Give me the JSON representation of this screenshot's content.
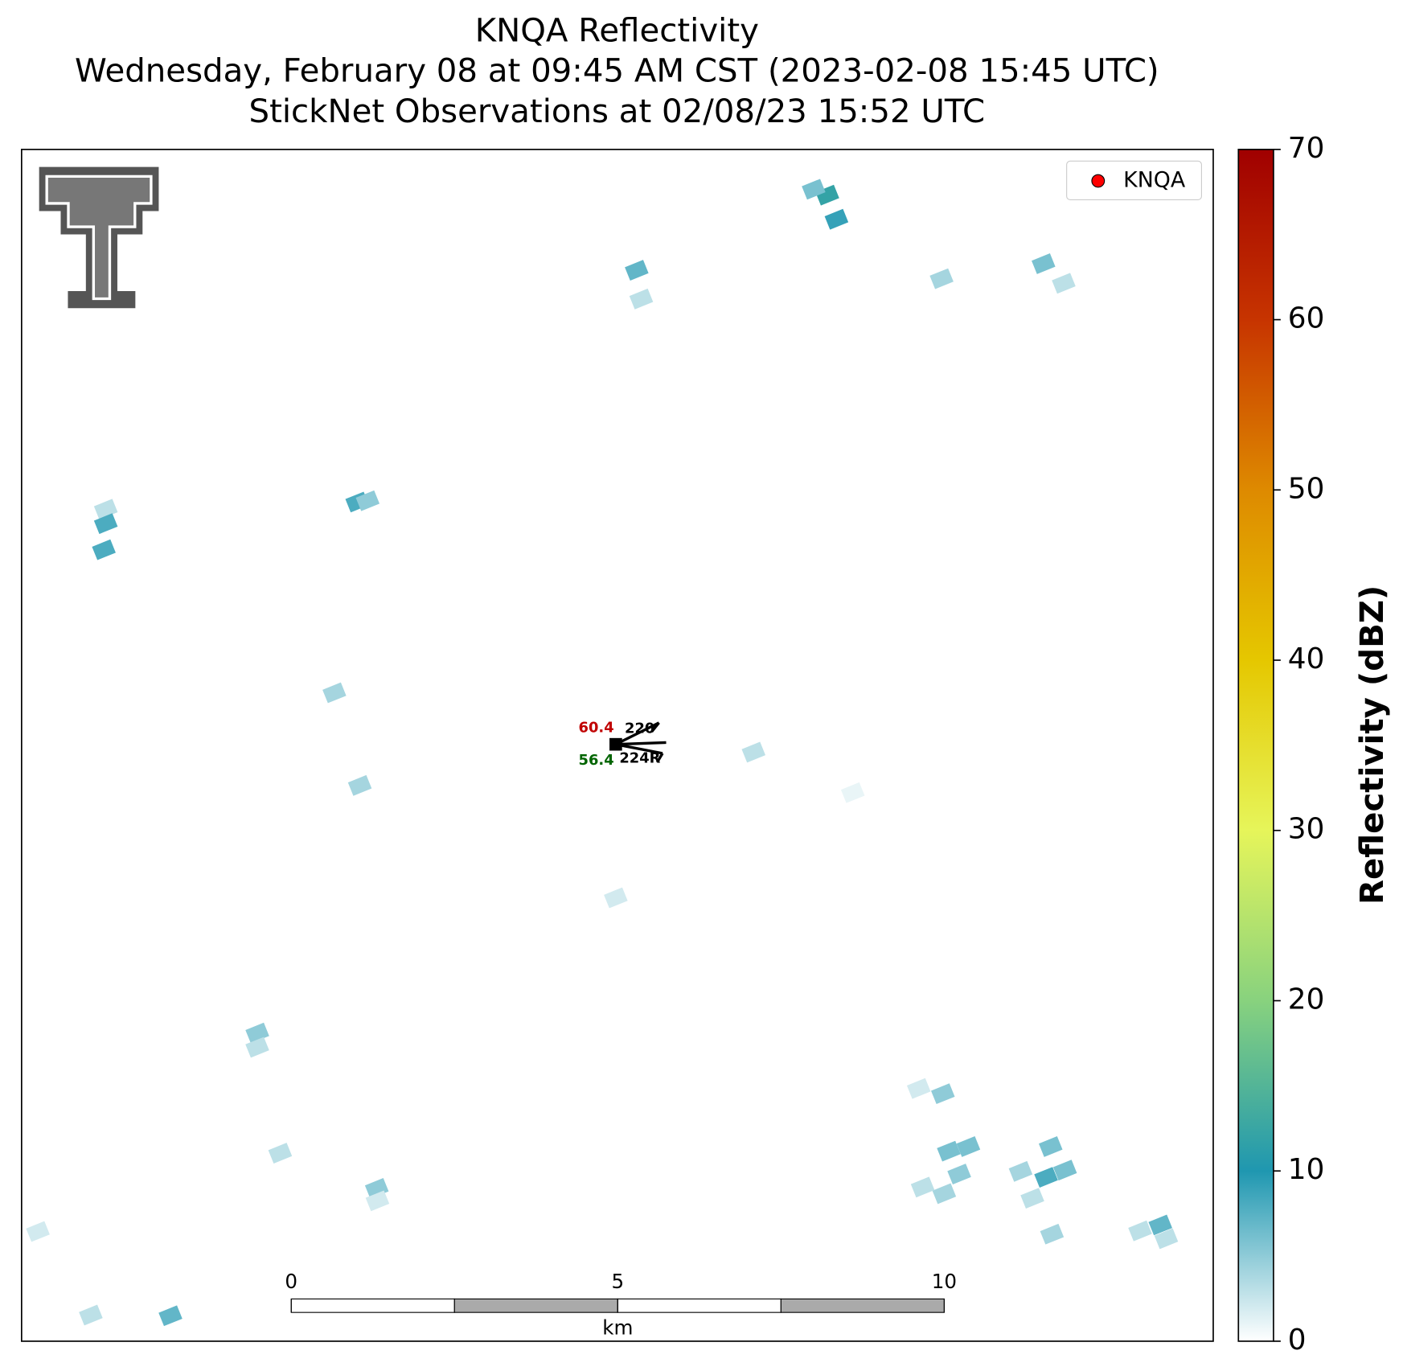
{
  "chart_data": {
    "type": "radar",
    "title": [
      "KNQA Reflectivity",
      "Wednesday, February 08 at 09:45 AM CST (2023-02-08 15:45 UTC)",
      "StickNet Observations at 02/08/23 15:52 UTC"
    ],
    "xlim": [
      -4.13,
      14.12
    ],
    "ylim": [
      0,
      18.25
    ],
    "scale_bar": {
      "ticks": [
        0,
        5,
        10
      ],
      "label": "km"
    },
    "colorbar": {
      "label": "Reflectivity (dBZ)",
      "lim": [
        0,
        70
      ],
      "ticks": [
        0,
        10,
        20,
        30,
        40,
        50,
        60,
        70
      ],
      "colors": [
        "#ffffff",
        "#1f97b0",
        "#88d27e",
        "#e6f55a",
        "#e5c700",
        "#de8a00",
        "#c73400",
        "#a00000"
      ]
    },
    "legend": {
      "name": "KNQA",
      "color": "#ff0000",
      "loc": "upper right"
    },
    "station": {
      "x": 4.97,
      "y": 9.14,
      "temperature": "60.4",
      "dewpoint": "56.4",
      "upper_label": "220",
      "lower_label": "224R"
    },
    "echoes": [
      {
        "x": -2.84,
        "y": 12.74,
        "dbz": 3
      },
      {
        "x": -2.84,
        "y": 12.52,
        "dbz": 8
      },
      {
        "x": -2.87,
        "y": 12.12,
        "dbz": 8
      },
      {
        "x": 1.01,
        "y": 12.85,
        "dbz": 8
      },
      {
        "x": 1.17,
        "y": 12.87,
        "dbz": 5
      },
      {
        "x": 0.66,
        "y": 9.93,
        "dbz": 4
      },
      {
        "x": 1.05,
        "y": 8.51,
        "dbz": 4
      },
      {
        "x": 4.97,
        "y": 6.79,
        "dbz": 2
      },
      {
        "x": 7.08,
        "y": 9.02,
        "dbz": 3
      },
      {
        "x": 5.29,
        "y": 16.4,
        "dbz": 7
      },
      {
        "x": 5.36,
        "y": 15.96,
        "dbz": 3
      },
      {
        "x": 8.21,
        "y": 17.55,
        "dbz": 12
      },
      {
        "x": 8.35,
        "y": 17.18,
        "dbz": 9
      },
      {
        "x": 8.0,
        "y": 17.64,
        "dbz": 6
      },
      {
        "x": 9.96,
        "y": 16.27,
        "dbz": 4
      },
      {
        "x": 11.52,
        "y": 16.5,
        "dbz": 6
      },
      {
        "x": 11.83,
        "y": 16.2,
        "dbz": 3
      },
      {
        "x": -0.52,
        "y": 4.72,
        "dbz": 5
      },
      {
        "x": -0.52,
        "y": 4.5,
        "dbz": 3
      },
      {
        "x": -0.17,
        "y": 2.88,
        "dbz": 3
      },
      {
        "x": 1.31,
        "y": 2.34,
        "dbz": 5
      },
      {
        "x": 1.32,
        "y": 2.15,
        "dbz": 2
      },
      {
        "x": -3.88,
        "y": 1.68,
        "dbz": 2
      },
      {
        "x": -3.07,
        "y": 0.4,
        "dbz": 3
      },
      {
        "x": -1.85,
        "y": 0.39,
        "dbz": 7
      },
      {
        "x": 10.07,
        "y": 2.91,
        "dbz": 6
      },
      {
        "x": 10.37,
        "y": 2.98,
        "dbz": 6
      },
      {
        "x": 10.23,
        "y": 2.56,
        "dbz": 5
      },
      {
        "x": 10.0,
        "y": 2.26,
        "dbz": 4
      },
      {
        "x": 9.67,
        "y": 2.36,
        "dbz": 3
      },
      {
        "x": 11.56,
        "y": 2.51,
        "dbz": 8
      },
      {
        "x": 11.85,
        "y": 2.62,
        "dbz": 6
      },
      {
        "x": 11.63,
        "y": 2.98,
        "dbz": 6
      },
      {
        "x": 11.17,
        "y": 2.6,
        "dbz": 4
      },
      {
        "x": 11.35,
        "y": 2.19,
        "dbz": 3
      },
      {
        "x": 11.65,
        "y": 1.64,
        "dbz": 4
      },
      {
        "x": 13.31,
        "y": 1.78,
        "dbz": 7
      },
      {
        "x": 13.4,
        "y": 1.57,
        "dbz": 3
      },
      {
        "x": 13.0,
        "y": 1.69,
        "dbz": 3
      },
      {
        "x": 9.98,
        "y": 3.79,
        "dbz": 5
      },
      {
        "x": 9.61,
        "y": 3.87,
        "dbz": 2
      },
      {
        "x": 8.6,
        "y": 8.4,
        "dbz": 1
      }
    ]
  }
}
